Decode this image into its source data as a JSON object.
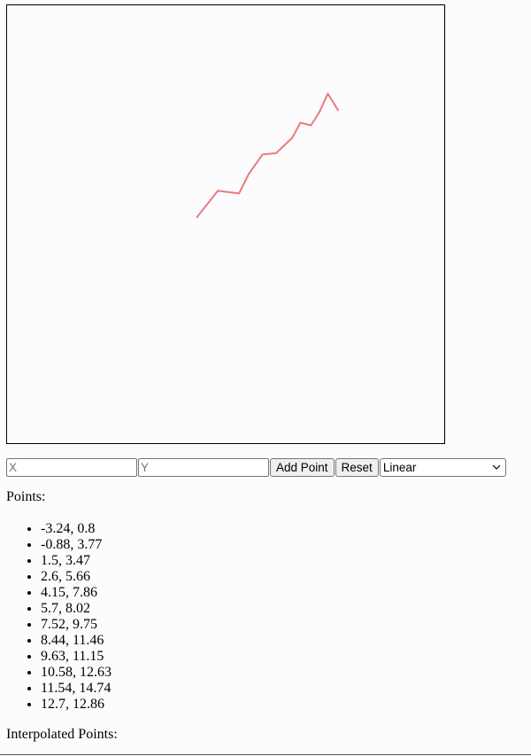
{
  "controls": {
    "x_placeholder": "X",
    "y_placeholder": "Y",
    "add_label": "Add Point",
    "reset_label": "Reset",
    "method_selected": "Linear"
  },
  "points_heading": "Points:",
  "points": [
    {
      "x": -3.24,
      "y": 0.8
    },
    {
      "x": -0.88,
      "y": 3.77
    },
    {
      "x": 1.5,
      "y": 3.47
    },
    {
      "x": 2.6,
      "y": 5.66
    },
    {
      "x": 4.15,
      "y": 7.86
    },
    {
      "x": 5.7,
      "y": 8.02
    },
    {
      "x": 7.52,
      "y": 9.75
    },
    {
      "x": 8.44,
      "y": 11.46
    },
    {
      "x": 9.63,
      "y": 11.15
    },
    {
      "x": 10.58,
      "y": 12.63
    },
    {
      "x": 11.54,
      "y": 14.74
    },
    {
      "x": 12.7,
      "y": 12.86
    }
  ],
  "interpolated_heading": "Interpolated Points:",
  "colors": {
    "line": "#e87c7c"
  }
}
